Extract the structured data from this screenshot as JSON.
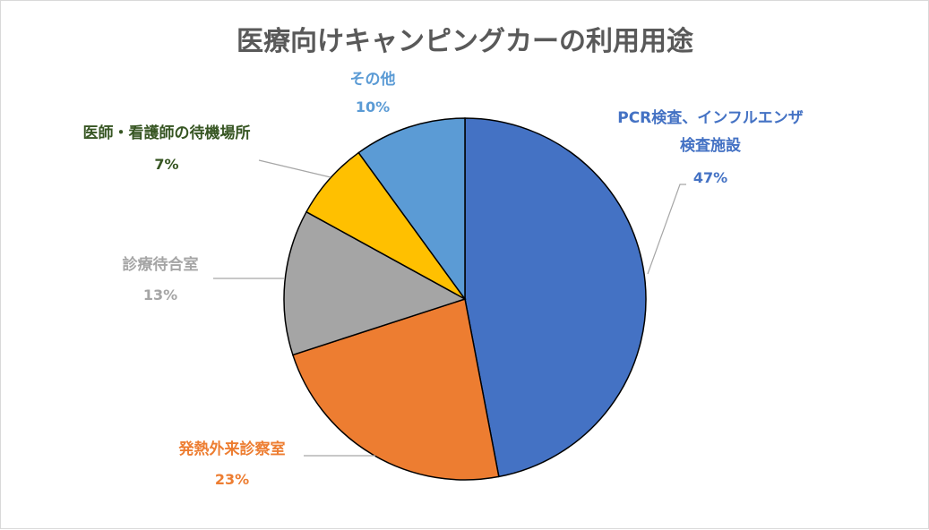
{
  "chart_data": {
    "type": "pie",
    "title": "医療向けキャンピングカーの利用用途",
    "slices": [
      {
        "label_lines": [
          "PCR検査、インフルエンザ",
          "検査施設"
        ],
        "value": 47,
        "pct_label": "47%",
        "color": "#4472C4"
      },
      {
        "label_lines": [
          "発熱外来診察室"
        ],
        "value": 23,
        "pct_label": "23%",
        "color": "#ED7D31"
      },
      {
        "label_lines": [
          "診療待合室"
        ],
        "value": 13,
        "pct_label": "13%",
        "color": "#A5A5A5"
      },
      {
        "label_lines": [
          "医師・看護師の待機場所"
        ],
        "value": 7,
        "pct_label": "7%",
        "color": "#FFC000"
      },
      {
        "label_lines": [
          "その他"
        ],
        "value": 10,
        "pct_label": "10%",
        "color": "#5B9BD5"
      }
    ],
    "label_colors": [
      "#4472C4",
      "#ED7D31",
      "#A5A5A5",
      "#375623",
      "#5B9BD5"
    ],
    "start": "12 o'clock",
    "direction": "clockwise",
    "legend": "none"
  }
}
